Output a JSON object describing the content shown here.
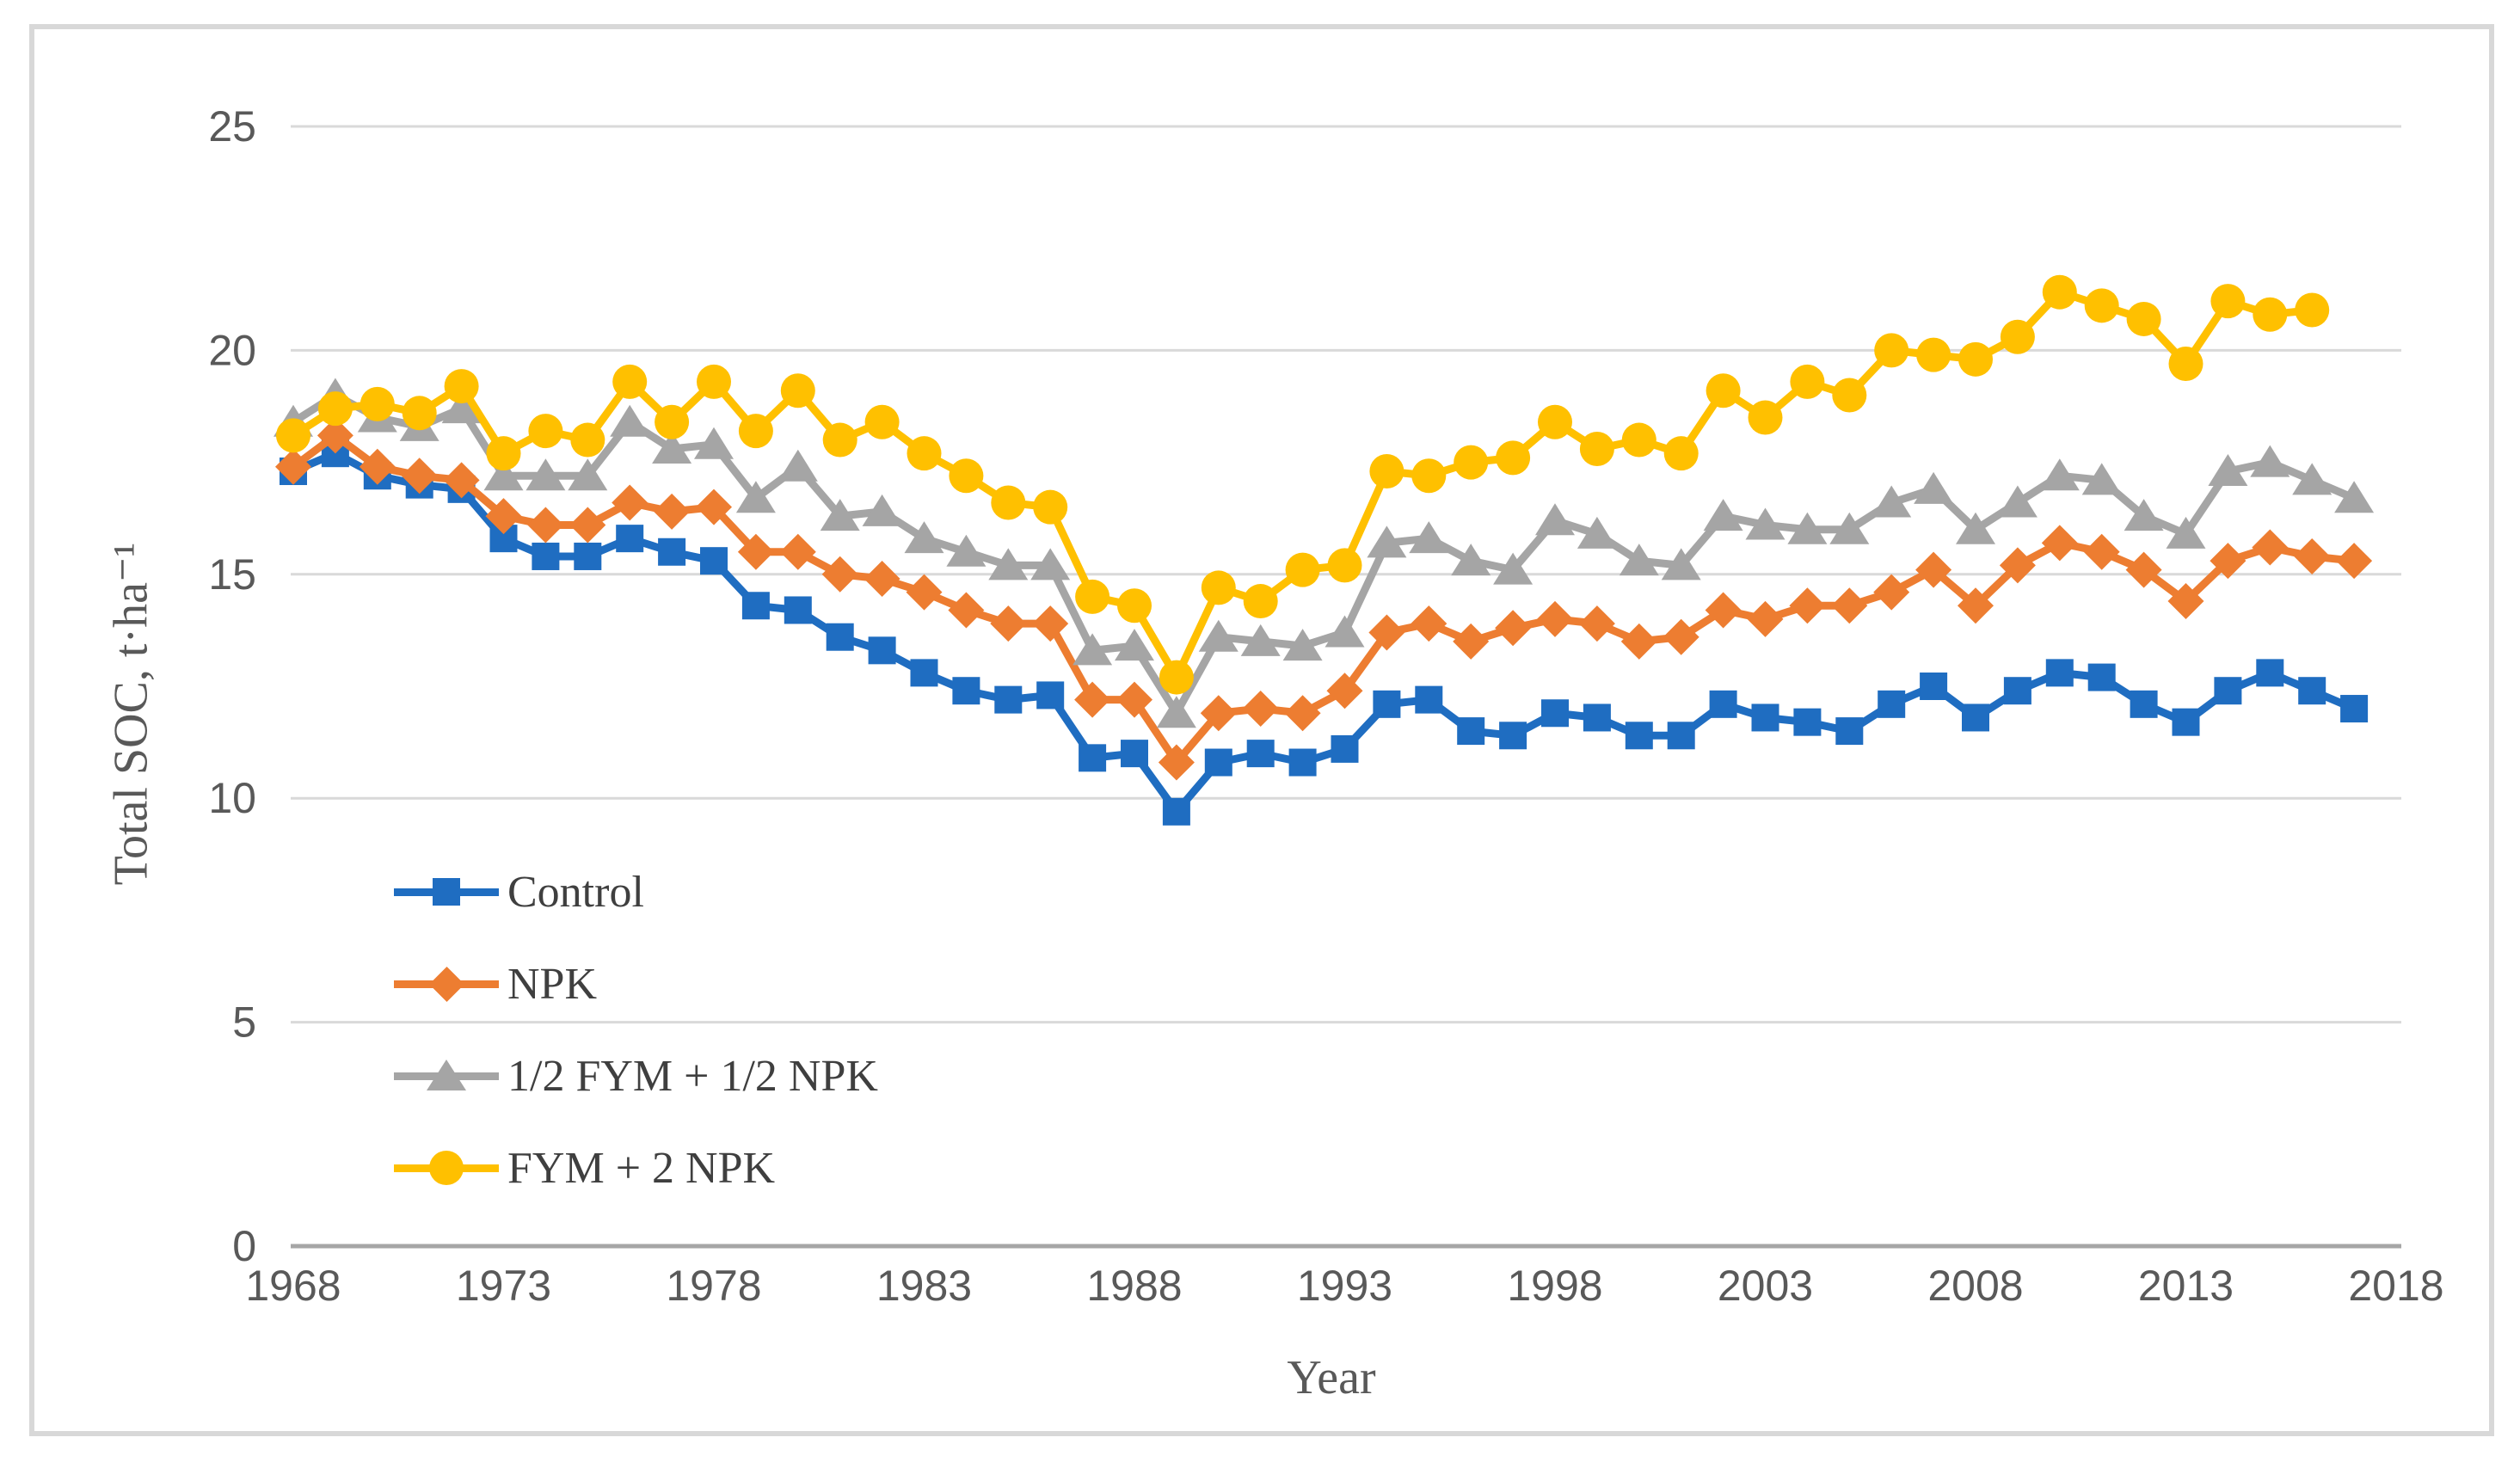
{
  "figure": {
    "background": "#ffffff",
    "border_color": "#d8d8d8"
  },
  "chart_data": {
    "type": "line",
    "title": "",
    "xlabel": "Year",
    "ylabel": "Total SOC, t·ha⁻¹",
    "xlim": [
      1968,
      2018
    ],
    "ylim": [
      0,
      25
    ],
    "x_ticks": [
      1968,
      1973,
      1978,
      1983,
      1988,
      1993,
      1998,
      2003,
      2008,
      2013,
      2018
    ],
    "y_ticks": [
      0,
      5,
      10,
      15,
      20,
      25
    ],
    "grid": true,
    "legend_position": "inside-left",
    "axis_color": "#a6a6a6",
    "gridline_color": "#d9d9d9",
    "tick_label_color": "#595959",
    "x": [
      1968,
      1969,
      1970,
      1971,
      1972,
      1973,
      1974,
      1975,
      1976,
      1977,
      1978,
      1979,
      1980,
      1981,
      1982,
      1983,
      1984,
      1985,
      1986,
      1987,
      1988,
      1989,
      1990,
      1991,
      1992,
      1993,
      1994,
      1995,
      1996,
      1997,
      1998,
      1999,
      2000,
      2001,
      2002,
      2003,
      2004,
      2005,
      2006,
      2007,
      2008,
      2009,
      2010,
      2011,
      2012,
      2013,
      2014,
      2015,
      2016,
      2017
    ],
    "series": [
      {
        "name": "Control",
        "marker": "square",
        "color": "#1f6dc1",
        "values": [
          17.3,
          17.7,
          17.2,
          17.0,
          16.9,
          15.8,
          15.4,
          15.4,
          15.8,
          15.5,
          15.3,
          14.3,
          14.2,
          13.6,
          13.3,
          12.8,
          12.4,
          12.2,
          12.3,
          10.9,
          11.0,
          9.7,
          10.8,
          11.0,
          10.8,
          11.1,
          12.1,
          12.2,
          11.5,
          11.4,
          11.9,
          11.8,
          11.4,
          11.4,
          12.1,
          11.8,
          11.7,
          11.5,
          12.1,
          12.5,
          11.8,
          12.4,
          12.8,
          12.7,
          12.1,
          11.7,
          12.4,
          12.8,
          12.4,
          12.0
        ]
      },
      {
        "name": "NPK",
        "marker": "diamond",
        "color": "#ed7d31",
        "values": [
          17.4,
          18.1,
          17.4,
          17.2,
          17.1,
          16.3,
          16.1,
          16.1,
          16.6,
          16.4,
          16.5,
          15.5,
          15.5,
          15.0,
          14.9,
          14.6,
          14.2,
          13.9,
          13.9,
          12.2,
          12.2,
          10.8,
          11.9,
          12.0,
          11.9,
          12.4,
          13.7,
          13.9,
          13.5,
          13.8,
          14.0,
          13.9,
          13.5,
          13.6,
          14.2,
          14.0,
          14.3,
          14.3,
          14.6,
          15.1,
          14.3,
          15.2,
          15.7,
          15.5,
          15.1,
          14.4,
          15.3,
          15.6,
          15.4,
          15.3
        ]
      },
      {
        "name": "1/2 FYM + 1/2 NPK",
        "marker": "triangle",
        "color": "#a5a5a5",
        "values": [
          18.4,
          19.0,
          18.5,
          18.3,
          18.7,
          17.2,
          17.2,
          17.2,
          18.4,
          17.8,
          17.9,
          16.7,
          17.4,
          16.3,
          16.4,
          15.8,
          15.5,
          15.2,
          15.2,
          13.3,
          13.4,
          11.9,
          13.6,
          13.5,
          13.4,
          13.7,
          15.7,
          15.8,
          15.3,
          15.1,
          16.2,
          15.9,
          15.3,
          15.2,
          16.3,
          16.1,
          16.0,
          16.0,
          16.6,
          16.9,
          16.0,
          16.6,
          17.2,
          17.1,
          16.3,
          15.9,
          17.3,
          17.5,
          17.1,
          16.7
        ]
      },
      {
        "name": "FYM + 2 NPK",
        "marker": "circle",
        "color": "#ffc000",
        "values": [
          18.1,
          18.7,
          18.8,
          18.6,
          19.2,
          17.7,
          18.2,
          18.0,
          19.3,
          18.4,
          19.3,
          18.2,
          19.1,
          18.0,
          18.4,
          17.7,
          17.2,
          16.6,
          16.5,
          14.5,
          14.3,
          12.7,
          14.7,
          14.4,
          15.1,
          15.2,
          17.3,
          17.2,
          17.5,
          17.6,
          18.4,
          17.8,
          18.0,
          17.7,
          19.1,
          18.5,
          19.3,
          19.0,
          20.0,
          19.9,
          19.8,
          20.3,
          21.3,
          21.0,
          20.7,
          19.7,
          21.1,
          20.8,
          20.9,
          null
        ]
      }
    ]
  },
  "legend": {
    "items": [
      {
        "label": "Control"
      },
      {
        "label": "NPK"
      },
      {
        "label": "1/2 FYM + 1/2 NPK"
      },
      {
        "label": "FYM + 2 NPK"
      }
    ]
  }
}
